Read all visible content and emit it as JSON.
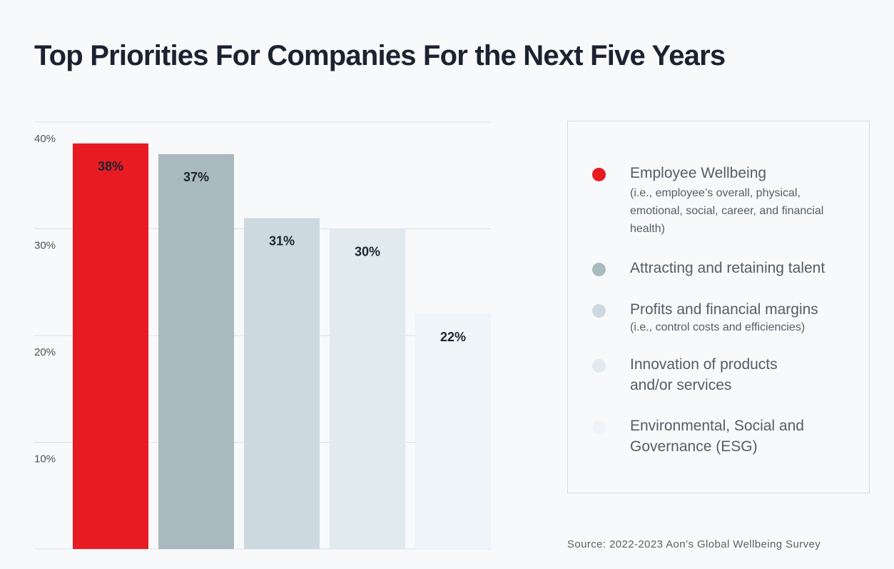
{
  "chart_data": {
    "type": "bar",
    "title": "Top Priorities For Companies For the Next Five Years",
    "xlabel": "",
    "ylabel": "",
    "ylim": [
      0,
      40
    ],
    "yticks": [
      10,
      20,
      30,
      40
    ],
    "ytick_labels": [
      "10%",
      "20%",
      "30%",
      "40%"
    ],
    "grid": true,
    "legend_position": "right",
    "categories": [
      "Employee Wellbeing",
      "Attracting and retaining talent",
      "Profits and financial margins",
      "Innovation of products and/or services",
      "Environmental, Social and Governance (ESG)"
    ],
    "values": [
      38,
      37,
      31,
      30,
      22
    ],
    "value_labels": [
      "38%",
      "37%",
      "31%",
      "30%",
      "22%"
    ],
    "colors": [
      "#e81b23",
      "#a9babe",
      "#ccdadf",
      "#e1ebee",
      "#eef4f7"
    ],
    "label_color": "#1e2430",
    "grid_color": "#d6e2ea",
    "axis_text_color": "#4a525b"
  },
  "legend": {
    "items": [
      {
        "label": "Employee Wellbeing",
        "sub": "(i.e., employee’s overall, physical, emotional, social, career, and financial health)",
        "color": "#e81b23"
      },
      {
        "label": "Attracting and retaining talent",
        "sub": "",
        "color": "#a9babe"
      },
      {
        "label": "Profits and financial margins",
        "sub": "(i.e., control costs and efficiencies)",
        "color": "#ccdadf"
      },
      {
        "label": "Innovation of products and/or services",
        "sub": "",
        "color": "#e1ebee"
      },
      {
        "label": "Environmental, Social and Governance (ESG)",
        "sub": "",
        "color": "#eef4f7"
      }
    ]
  },
  "source": "Source: 2022-2023 Aon’s Global Wellbeing Survey"
}
